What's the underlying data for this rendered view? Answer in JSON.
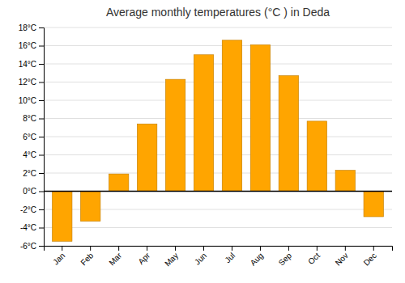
{
  "chart_data": {
    "type": "bar",
    "title": "Average monthly temperatures (°C ) in Deda",
    "categories": [
      "Jan",
      "Feb",
      "Mar",
      "Apr",
      "May",
      "Jun",
      "Jul",
      "Aug",
      "Sep",
      "Oct",
      "Nov",
      "Dec"
    ],
    "values": [
      -5.5,
      -3.3,
      1.9,
      7.4,
      12.3,
      15.0,
      16.6,
      16.1,
      12.7,
      7.7,
      2.3,
      -2.8
    ],
    "color": "#FFA500",
    "ylim": [
      -6,
      18
    ],
    "yticks": [
      {
        "value": -6,
        "label": "-6°C"
      },
      {
        "value": -4,
        "label": "-4°C"
      },
      {
        "value": -2,
        "label": "-2°C"
      },
      {
        "value": 0,
        "label": "0°C"
      },
      {
        "value": 2,
        "label": "2°C"
      },
      {
        "value": 4,
        "label": "4°C"
      },
      {
        "value": 6,
        "label": "6°C"
      },
      {
        "value": 8,
        "label": "8°C"
      },
      {
        "value": 10,
        "label": "10°C"
      },
      {
        "value": 12,
        "label": "12°C"
      },
      {
        "value": 14,
        "label": "14°C"
      },
      {
        "value": 16,
        "label": "16°C"
      },
      {
        "value": 18,
        "label": "18°C"
      }
    ],
    "grid": true
  }
}
